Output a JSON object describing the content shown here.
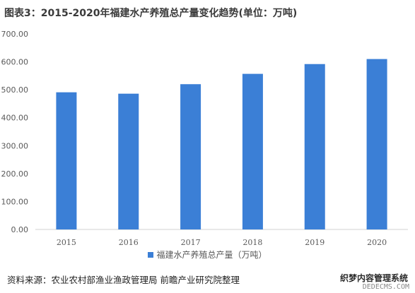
{
  "title": "图表3：2015-2020年福建水产养殖总产量变化趋势(单位：万吨)",
  "chart_data": {
    "type": "bar",
    "title": "图表3：2015-2020年福建水产养殖总产量变化趋势(单位：万吨)",
    "categories": [
      "2015",
      "2016",
      "2017",
      "2018",
      "2019",
      "2020"
    ],
    "series": [
      {
        "name": "福建水产养殖总产量（万吨）",
        "values": [
          491,
          486,
          520,
          557,
          592,
          610
        ]
      }
    ],
    "y_ticks": [
      "0.00",
      "100.00",
      "200.00",
      "300.00",
      "400.00",
      "500.00",
      "600.00",
      "700.00"
    ],
    "ylim": [
      0,
      700
    ],
    "grid": false,
    "legend_position": "bottom",
    "bar_color": "#3b7fd6"
  },
  "source": "资料来源：农业农村部渔业渔政管理局 前瞻产业研究院整理",
  "watermark": {
    "line1": "织梦内容管理系统",
    "line2": "DEDECMS.COM"
  }
}
